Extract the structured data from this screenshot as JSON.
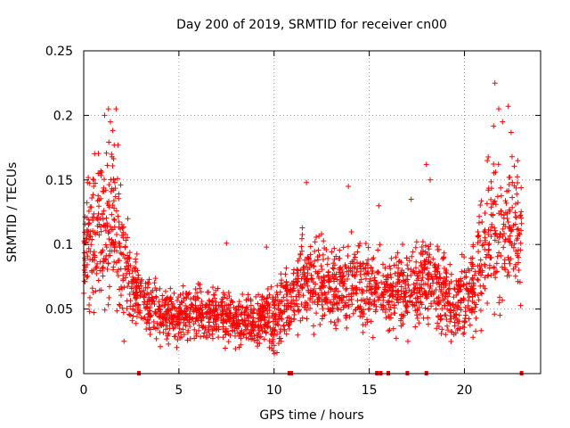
{
  "chart_data": {
    "type": "scatter",
    "title": "Day 200 of 2019, SRMTID for receiver cn00",
    "xlabel": "GPS time / hours",
    "ylabel": "SRMTID / TECUs",
    "xlim": [
      0,
      24
    ],
    "ylim": [
      0,
      0.25
    ],
    "xticks": [
      0,
      5,
      10,
      15,
      20
    ],
    "xtick_labels": [
      "0",
      "5",
      "10",
      "15",
      "20"
    ],
    "yticks": [
      0,
      0.05,
      0.1,
      0.15,
      0.2,
      0.25
    ],
    "ytick_labels": [
      "0",
      "0.05",
      "0.1",
      "0.15",
      "0.2",
      "0.25"
    ],
    "grid": true,
    "marker": "plus",
    "series": [
      {
        "name": "SRMTID",
        "color": "#ff0000",
        "trend_hours": [
          0.0,
          0.5,
          1.0,
          1.5,
          2.0,
          2.5,
          3.0,
          3.5,
          4.0,
          5.0,
          6.0,
          7.0,
          8.0,
          9.0,
          9.5,
          10.0,
          10.5,
          11.0,
          11.5,
          12.0,
          13.0,
          14.0,
          15.0,
          16.0,
          17.0,
          18.0,
          18.5,
          19.0,
          19.5,
          20.0,
          20.5,
          21.0,
          21.5,
          22.0,
          22.5,
          23.0
        ],
        "trend_tecu": [
          0.09,
          0.11,
          0.12,
          0.12,
          0.09,
          0.07,
          0.055,
          0.05,
          0.045,
          0.045,
          0.045,
          0.045,
          0.04,
          0.04,
          0.045,
          0.04,
          0.055,
          0.06,
          0.07,
          0.075,
          0.065,
          0.07,
          0.065,
          0.06,
          0.065,
          0.07,
          0.075,
          0.06,
          0.05,
          0.06,
          0.07,
          0.09,
          0.12,
          0.11,
          0.12,
          0.1
        ],
        "spread_tecu": [
          0.03,
          0.035,
          0.04,
          0.04,
          0.03,
          0.02,
          0.015,
          0.013,
          0.013,
          0.013,
          0.013,
          0.013,
          0.012,
          0.012,
          0.014,
          0.015,
          0.017,
          0.02,
          0.022,
          0.022,
          0.018,
          0.02,
          0.02,
          0.018,
          0.02,
          0.022,
          0.022,
          0.02,
          0.018,
          0.02,
          0.022,
          0.03,
          0.04,
          0.035,
          0.035,
          0.03
        ],
        "peak_points": [
          [
            0.2,
            0.148
          ],
          [
            0.9,
            0.157
          ],
          [
            1.1,
            0.2
          ],
          [
            1.3,
            0.205
          ],
          [
            1.4,
            0.195
          ],
          [
            1.7,
            0.205
          ],
          [
            1.8,
            0.177
          ],
          [
            7.5,
            0.101
          ],
          [
            9.6,
            0.098
          ],
          [
            11.7,
            0.148
          ],
          [
            13.9,
            0.145
          ],
          [
            15.5,
            0.13
          ],
          [
            17.2,
            0.135
          ],
          [
            18.0,
            0.162
          ],
          [
            18.2,
            0.15
          ],
          [
            21.2,
            0.165
          ],
          [
            21.6,
            0.225
          ],
          [
            21.8,
            0.205
          ],
          [
            22.0,
            0.195
          ],
          [
            22.3,
            0.207
          ],
          [
            22.5,
            0.168
          ],
          [
            22.8,
            0.165
          ]
        ]
      }
    ],
    "gap_markers_hours": [
      2.9,
      10.8,
      10.9,
      15.4,
      15.6,
      16.0,
      17.0,
      18.0,
      23.0
    ]
  }
}
